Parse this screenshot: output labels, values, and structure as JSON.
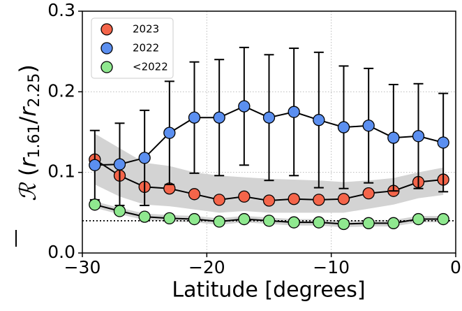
{
  "chart_data": {
    "type": "scatter",
    "xlabel": "Latitude [degrees]",
    "ylabel": {
      "symbol": "ℛ",
      "text": [
        "(",
        "r",
        "1.61",
        "/",
        "r",
        "2.25",
        ")"
      ]
    },
    "x": [
      -29,
      -27,
      -25,
      -23,
      -21,
      -19,
      -17,
      -15,
      -13,
      -11,
      -9,
      -7,
      -5,
      -3,
      -1
    ],
    "series": [
      {
        "name": "2023",
        "color": "#f4654a",
        "values": [
          0.116,
          0.096,
          0.082,
          0.08,
          0.073,
          0.066,
          0.07,
          0.065,
          0.067,
          0.066,
          0.067,
          0.074,
          0.077,
          0.088,
          0.091
        ]
      },
      {
        "name": "2022",
        "color": "#5b8ff0",
        "values": [
          0.109,
          0.11,
          0.118,
          0.149,
          0.168,
          0.168,
          0.182,
          0.168,
          0.175,
          0.165,
          0.156,
          0.158,
          0.143,
          0.145,
          0.137
        ],
        "errors": [
          0.043,
          0.051,
          0.059,
          0.064,
          0.069,
          0.072,
          0.073,
          0.078,
          0.079,
          0.084,
          0.076,
          0.071,
          0.066,
          0.065,
          0.061
        ]
      },
      {
        "name": "<2022",
        "color": "#8fe88f",
        "values": [
          0.06,
          0.052,
          0.045,
          0.043,
          0.042,
          0.039,
          0.042,
          0.04,
          0.038,
          0.038,
          0.036,
          0.037,
          0.037,
          0.042,
          0.042
        ]
      }
    ],
    "bands": [
      {
        "color": "#d3d3d3",
        "upper": [
          0.148,
          0.13,
          0.112,
          0.108,
          0.1,
          0.096,
          0.094,
          0.092,
          0.091,
          0.09,
          0.088,
          0.09,
          0.093,
          0.1,
          0.106
        ],
        "lower": [
          0.085,
          0.07,
          0.06,
          0.058,
          0.054,
          0.05,
          0.052,
          0.05,
          0.05,
          0.05,
          0.05,
          0.055,
          0.06,
          0.068,
          0.072
        ]
      },
      {
        "color": "#d3d3d3",
        "upper": [
          0.064,
          0.056,
          0.049,
          0.047,
          0.046,
          0.043,
          0.046,
          0.044,
          0.042,
          0.042,
          0.04,
          0.041,
          0.041,
          0.046,
          0.046
        ],
        "lower": [
          0.056,
          0.048,
          0.041,
          0.039,
          0.038,
          0.035,
          0.038,
          0.036,
          0.034,
          0.034,
          0.032,
          0.033,
          0.033,
          0.038,
          0.038
        ]
      }
    ],
    "hline": 0.04,
    "xlim": [
      -30,
      0
    ],
    "ylim": [
      0,
      0.3
    ],
    "xticks": [
      {
        "value": -30,
        "label": "−30"
      },
      {
        "value": -20,
        "label": "−20"
      },
      {
        "value": -10,
        "label": "−10"
      },
      0
    ],
    "yticks": [
      {
        "value": 0,
        "label": "0.0"
      },
      0.1,
      0.2,
      0.3
    ],
    "grid": true,
    "legend": "upper left"
  }
}
